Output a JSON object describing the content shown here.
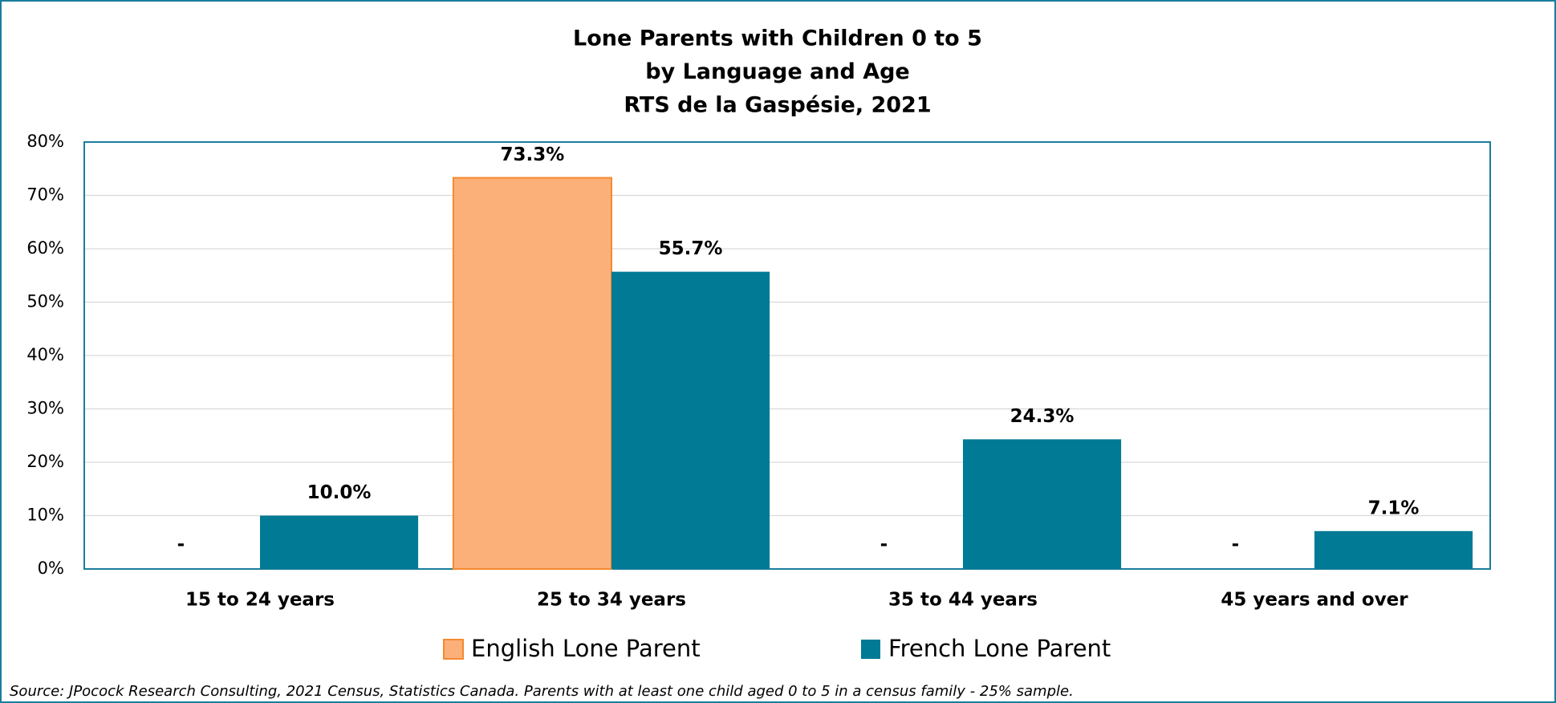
{
  "chart_data": {
    "type": "bar",
    "title": [
      "Lone Parents with Children 0 to 5",
      "by Language and Age",
      "RTS de la Gaspésie, 2021"
    ],
    "categories": [
      "15 to 24 years",
      "25 to 34 years",
      "35 to 44 years",
      "45 years and over"
    ],
    "series": [
      {
        "name": "English Lone Parent",
        "color": "#fbb07a",
        "stroke": "#f58a2e",
        "values": [
          0,
          73.3,
          0,
          0
        ],
        "value_labels": [
          "-",
          "73.3%",
          "-",
          "-"
        ]
      },
      {
        "name": "French Lone Parent",
        "color": "#007a95",
        "values": [
          10.0,
          55.7,
          24.3,
          7.1
        ],
        "value_labels": [
          "10.0%",
          "55.7%",
          "24.3%",
          "7.1%"
        ]
      }
    ],
    "ylim": [
      0,
      80
    ],
    "yticks": [
      {
        "value": 0,
        "label": "0%"
      },
      {
        "value": 10,
        "label": "10%"
      },
      {
        "value": 20,
        "label": "20%"
      },
      {
        "value": 30,
        "label": "30%"
      },
      {
        "value": 40,
        "label": "40%"
      },
      {
        "value": 50,
        "label": "50%"
      },
      {
        "value": 60,
        "label": "60%"
      },
      {
        "value": 70,
        "label": "70%"
      },
      {
        "value": 80,
        "label": "80%"
      }
    ],
    "grid": true,
    "legend": "bottom",
    "source": "Source: JPocock Research Consulting, 2021 Census, Statistics Canada. Parents with at least one child aged 0 to 5 in a census family - 25% sample."
  }
}
